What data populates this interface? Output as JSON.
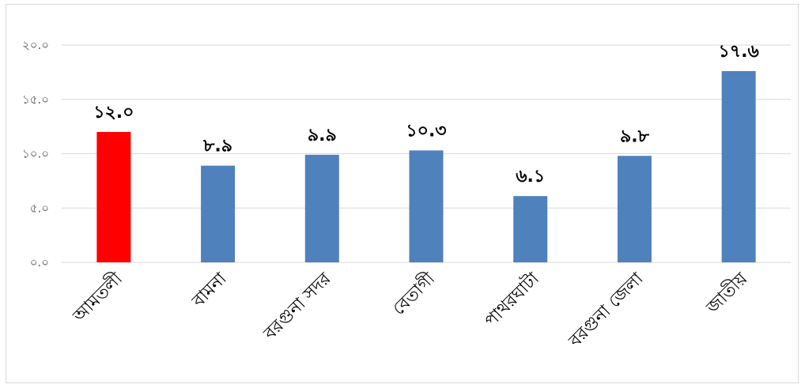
{
  "chart_data": {
    "type": "bar",
    "categories": [
      "আমতলী",
      "বামনা",
      "বরগুনা সদর",
      "বেতাগী",
      "পাথরঘাটা",
      "বরগুনা জেলা",
      "জাতীয়"
    ],
    "values": [
      12.0,
      8.9,
      9.9,
      10.3,
      6.1,
      9.8,
      17.6
    ],
    "data_labels": [
      "১২.০",
      "৮.৯",
      "৯.৯",
      "১০.৩",
      "৬.১",
      "৯.৮",
      "১৭.৬"
    ],
    "y_ticks": [
      0,
      5,
      10,
      15,
      20
    ],
    "y_tick_labels": [
      "০.০",
      "৫.০",
      "১০.০",
      "১৫.০",
      "২০.০"
    ],
    "ylim": [
      0,
      20
    ],
    "title": "",
    "xlabel": "",
    "ylabel": "",
    "grid": true,
    "legend": "none",
    "colors": {
      "default_bar": "#4f81bd",
      "highlight_bar": "#ff0000",
      "gridline": "#d9d9d9",
      "tick_text": "#595959"
    },
    "highlight_index": 0
  }
}
